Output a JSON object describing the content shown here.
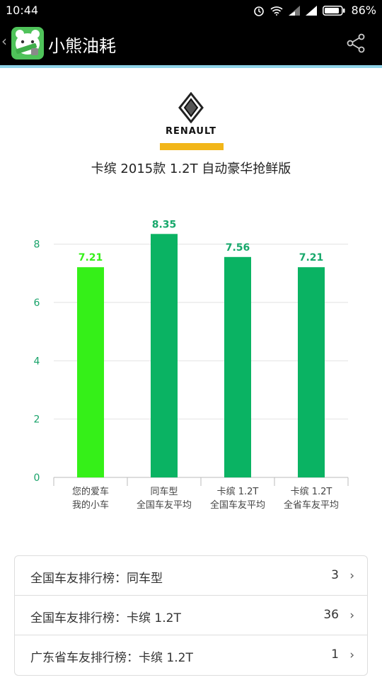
{
  "statusbar": {
    "time": "10:44",
    "battery": "86%"
  },
  "appbar": {
    "title": "小熊油耗"
  },
  "brand": {
    "name": "RENAULT",
    "accent": "#f2b619"
  },
  "model": {
    "title": "卡缤 2015款 1.2T 自动豪华抢鲜版"
  },
  "chart_data": {
    "type": "bar",
    "categories": [
      [
        "您的爱车",
        "我的小车"
      ],
      [
        "同车型",
        "全国车友平均"
      ],
      [
        "卡缤 1.2T",
        "全国车友平均"
      ],
      [
        "卡缤 1.2T",
        "全省车友平均"
      ]
    ],
    "values": [
      7.21,
      8.35,
      7.56,
      7.21
    ],
    "value_labels": [
      "7.21",
      "8.35",
      "7.56",
      "7.21"
    ],
    "colors": [
      "#35f018",
      "#0ab363",
      "#0ab363",
      "#0ab363"
    ],
    "label_colors": [
      "#35f018",
      "#17a86b",
      "#17a86b",
      "#17a86b"
    ],
    "yticks": [
      0,
      2,
      4,
      6,
      8
    ],
    "ylim": [
      0,
      8.6
    ],
    "grid": true
  },
  "rankings": [
    {
      "label": "全国车友排行榜：同车型",
      "count": "3"
    },
    {
      "label": "全国车友排行榜：卡缤 1.2T",
      "count": "36"
    },
    {
      "label": "广东省车友排行榜：卡缤 1.2T",
      "count": "1"
    }
  ]
}
